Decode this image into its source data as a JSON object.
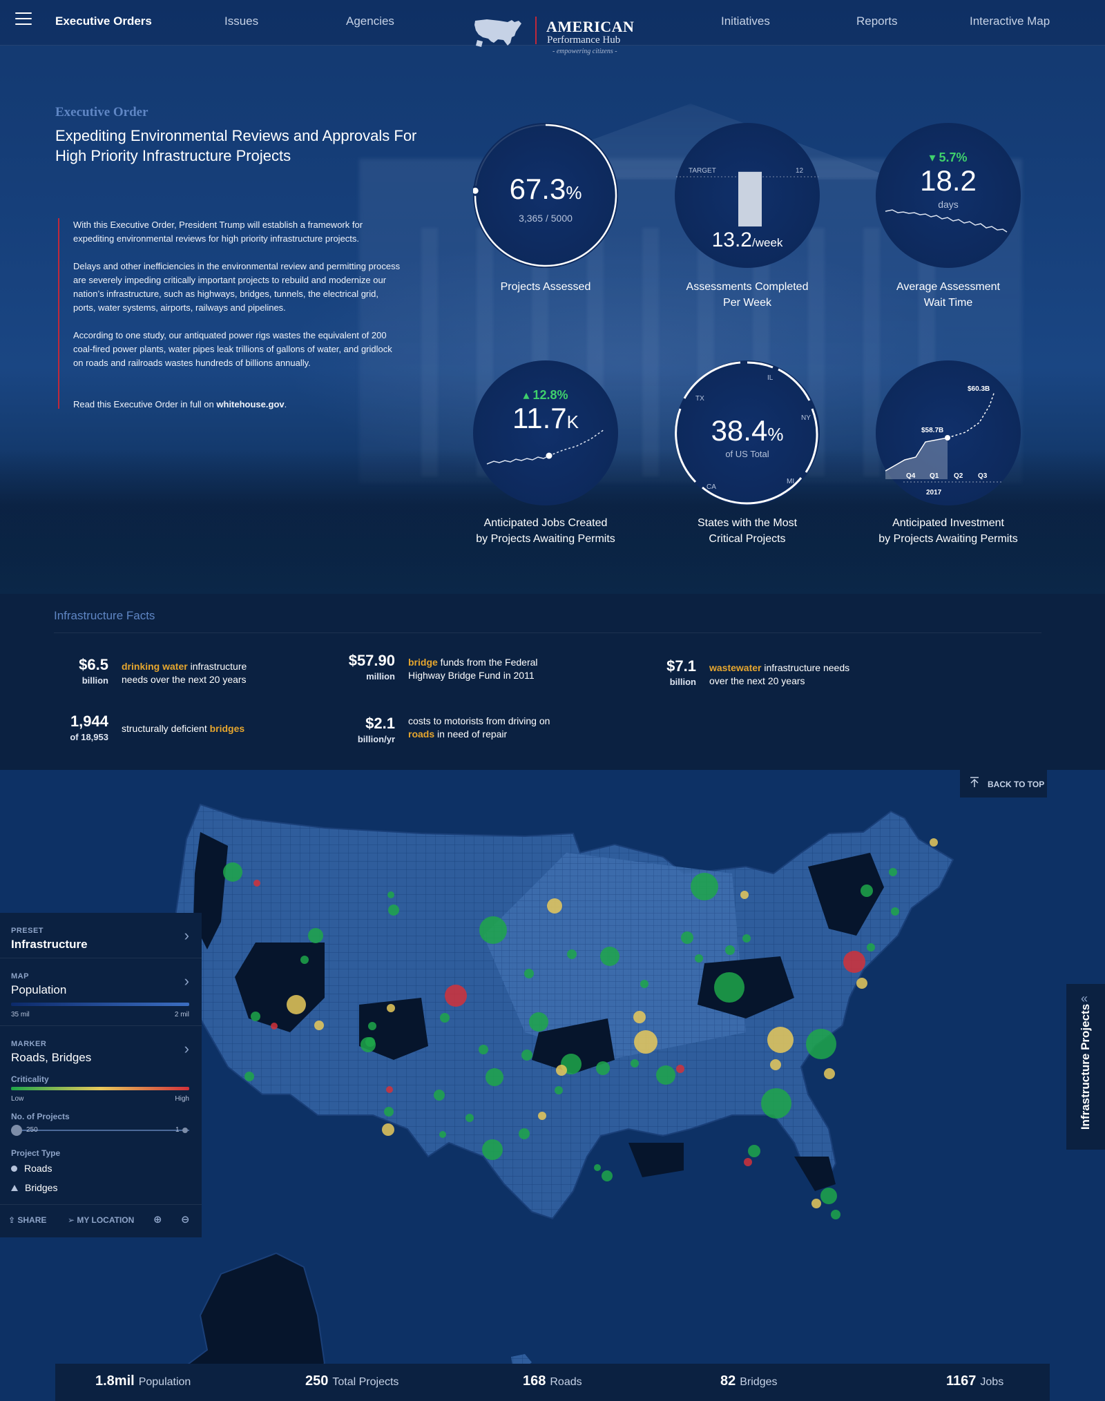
{
  "nav": {
    "items": [
      {
        "label": "Executive Orders",
        "active": true
      },
      {
        "label": "Issues"
      },
      {
        "label": "Agencies"
      },
      {
        "label": "Initiatives"
      },
      {
        "label": "Reports"
      },
      {
        "label": "Interactive Map"
      }
    ],
    "logo": {
      "line1": "AMERICAN",
      "line2": "Performance Hub",
      "tagline": "- empowering citizens -"
    }
  },
  "executive_order": {
    "kicker": "Executive Order",
    "title": "Expediting Environmental Reviews and Approvals For High Priority Infrastructure Projects",
    "paragraphs": [
      "With this Executive Order, President Trump will establish a framework for expediting environmental reviews for high priority infrastructure projects.",
      "Delays and other inefficiencies in the environmental review and permitting process are severely impeding critically important projects to rebuild and modernize our nation’s infrastructure, such as highways, bridges, tunnels, the electrical grid, ports, water systems, airports, railways and pipelines.",
      "According to one study, our antiquated power rigs wastes the equivalent of 200 coal-fired power plants, water pipes leak trillions of gallons of water, and gridlock on roads and railroads wastes hundreds of billions annually."
    ],
    "read_prefix": "Read this Executive Order in full on ",
    "read_link": "whitehouse.gov",
    "read_suffix": "."
  },
  "metrics": {
    "projects_assessed": {
      "value": "67.3",
      "unit": "%",
      "sub": "3,365 / 5000",
      "fraction": 0.673,
      "label_1": "Projects Assessed"
    },
    "assessments_week": {
      "value": "13.2",
      "unit": "/week",
      "target_label": "TARGET",
      "target_value": "12",
      "bar_value": 13.2,
      "label_1": "Assessments Completed",
      "label_2": "Per Week"
    },
    "wait_time": {
      "delta": "5.7%",
      "value": "18.2",
      "unit": "days",
      "label_1": "Average Assessment",
      "label_2": "Wait Time"
    },
    "jobs": {
      "delta": "12.8%",
      "value": "11.7",
      "unit": "K",
      "label_1": "Anticipated Jobs Created",
      "label_2": "by Projects Awaiting Permits"
    },
    "states": {
      "value": "38.4",
      "unit": "%",
      "sub": "of US Total",
      "states": [
        "IL",
        "NY",
        "MI",
        "CA",
        "TX"
      ],
      "label_1": "States with the Most",
      "label_2": "Critical Projects"
    },
    "investment": {
      "label_top": "$60.3B",
      "label_mid": "$58.7B",
      "quarters": [
        "Q4",
        "Q1",
        "Q2",
        "Q3"
      ],
      "year": "2017",
      "label_1": "Anticipated Investment",
      "label_2": "by Projects Awaiting Permits"
    }
  },
  "facts": {
    "heading": "Infrastructure Facts",
    "items": [
      {
        "num": "$6.5",
        "unit": "billion",
        "hl": "drinking water",
        "rest": " infrastructure",
        "line2": "needs over the next 20 years"
      },
      {
        "num": "$57.90",
        "unit": "million",
        "hl": "bridge",
        "rest": " funds from the Federal",
        "line2": "Highway Bridge Fund in 2011"
      },
      {
        "num": "$7.1",
        "unit": "billion",
        "hl": "wastewater",
        "rest": " infrastructure needs",
        "line2": "over the next 20 years"
      },
      {
        "num": "1,944",
        "unit": "of 18,953",
        "pre": "structurally deficient ",
        "hl": "bridges"
      },
      {
        "num": "$2.1",
        "unit": "billion/yr",
        "line1": "costs to motorists from driving on",
        "hl": "roads",
        "rest": " in need of repair"
      }
    ]
  },
  "map": {
    "back_to_top": "BACK TO TOP",
    "side_tab": "Infrastructure Projects",
    "panel": {
      "preset_h": "PRESET",
      "preset_v": "Infrastructure",
      "map_h": "MAP",
      "map_v": "Population",
      "map_min": "35 mil",
      "map_max": "2 mil",
      "marker_h": "MARKER",
      "marker_v": "Roads, Bridges",
      "crit_h": "Criticality",
      "crit_low": "Low",
      "crit_high": "High",
      "nop_h": "No. of Projects",
      "nop_max": "250",
      "nop_min": "1",
      "ptype_h": "Project Type",
      "ptype_roads": "Roads",
      "ptype_bridges": "Bridges",
      "share": "SHARE",
      "my_location": "MY LOCATION"
    },
    "colors": {
      "low": "#1fa64a",
      "mid": "#e8c95b",
      "high": "#d2313a"
    },
    "stats": [
      {
        "n": "1.8mil",
        "l": "Population"
      },
      {
        "n": "250",
        "l": "Total Projects"
      },
      {
        "n": "168",
        "l": "Roads"
      },
      {
        "n": "82",
        "l": "Bridges"
      },
      {
        "n": "1167",
        "l": "Jobs"
      }
    ]
  }
}
